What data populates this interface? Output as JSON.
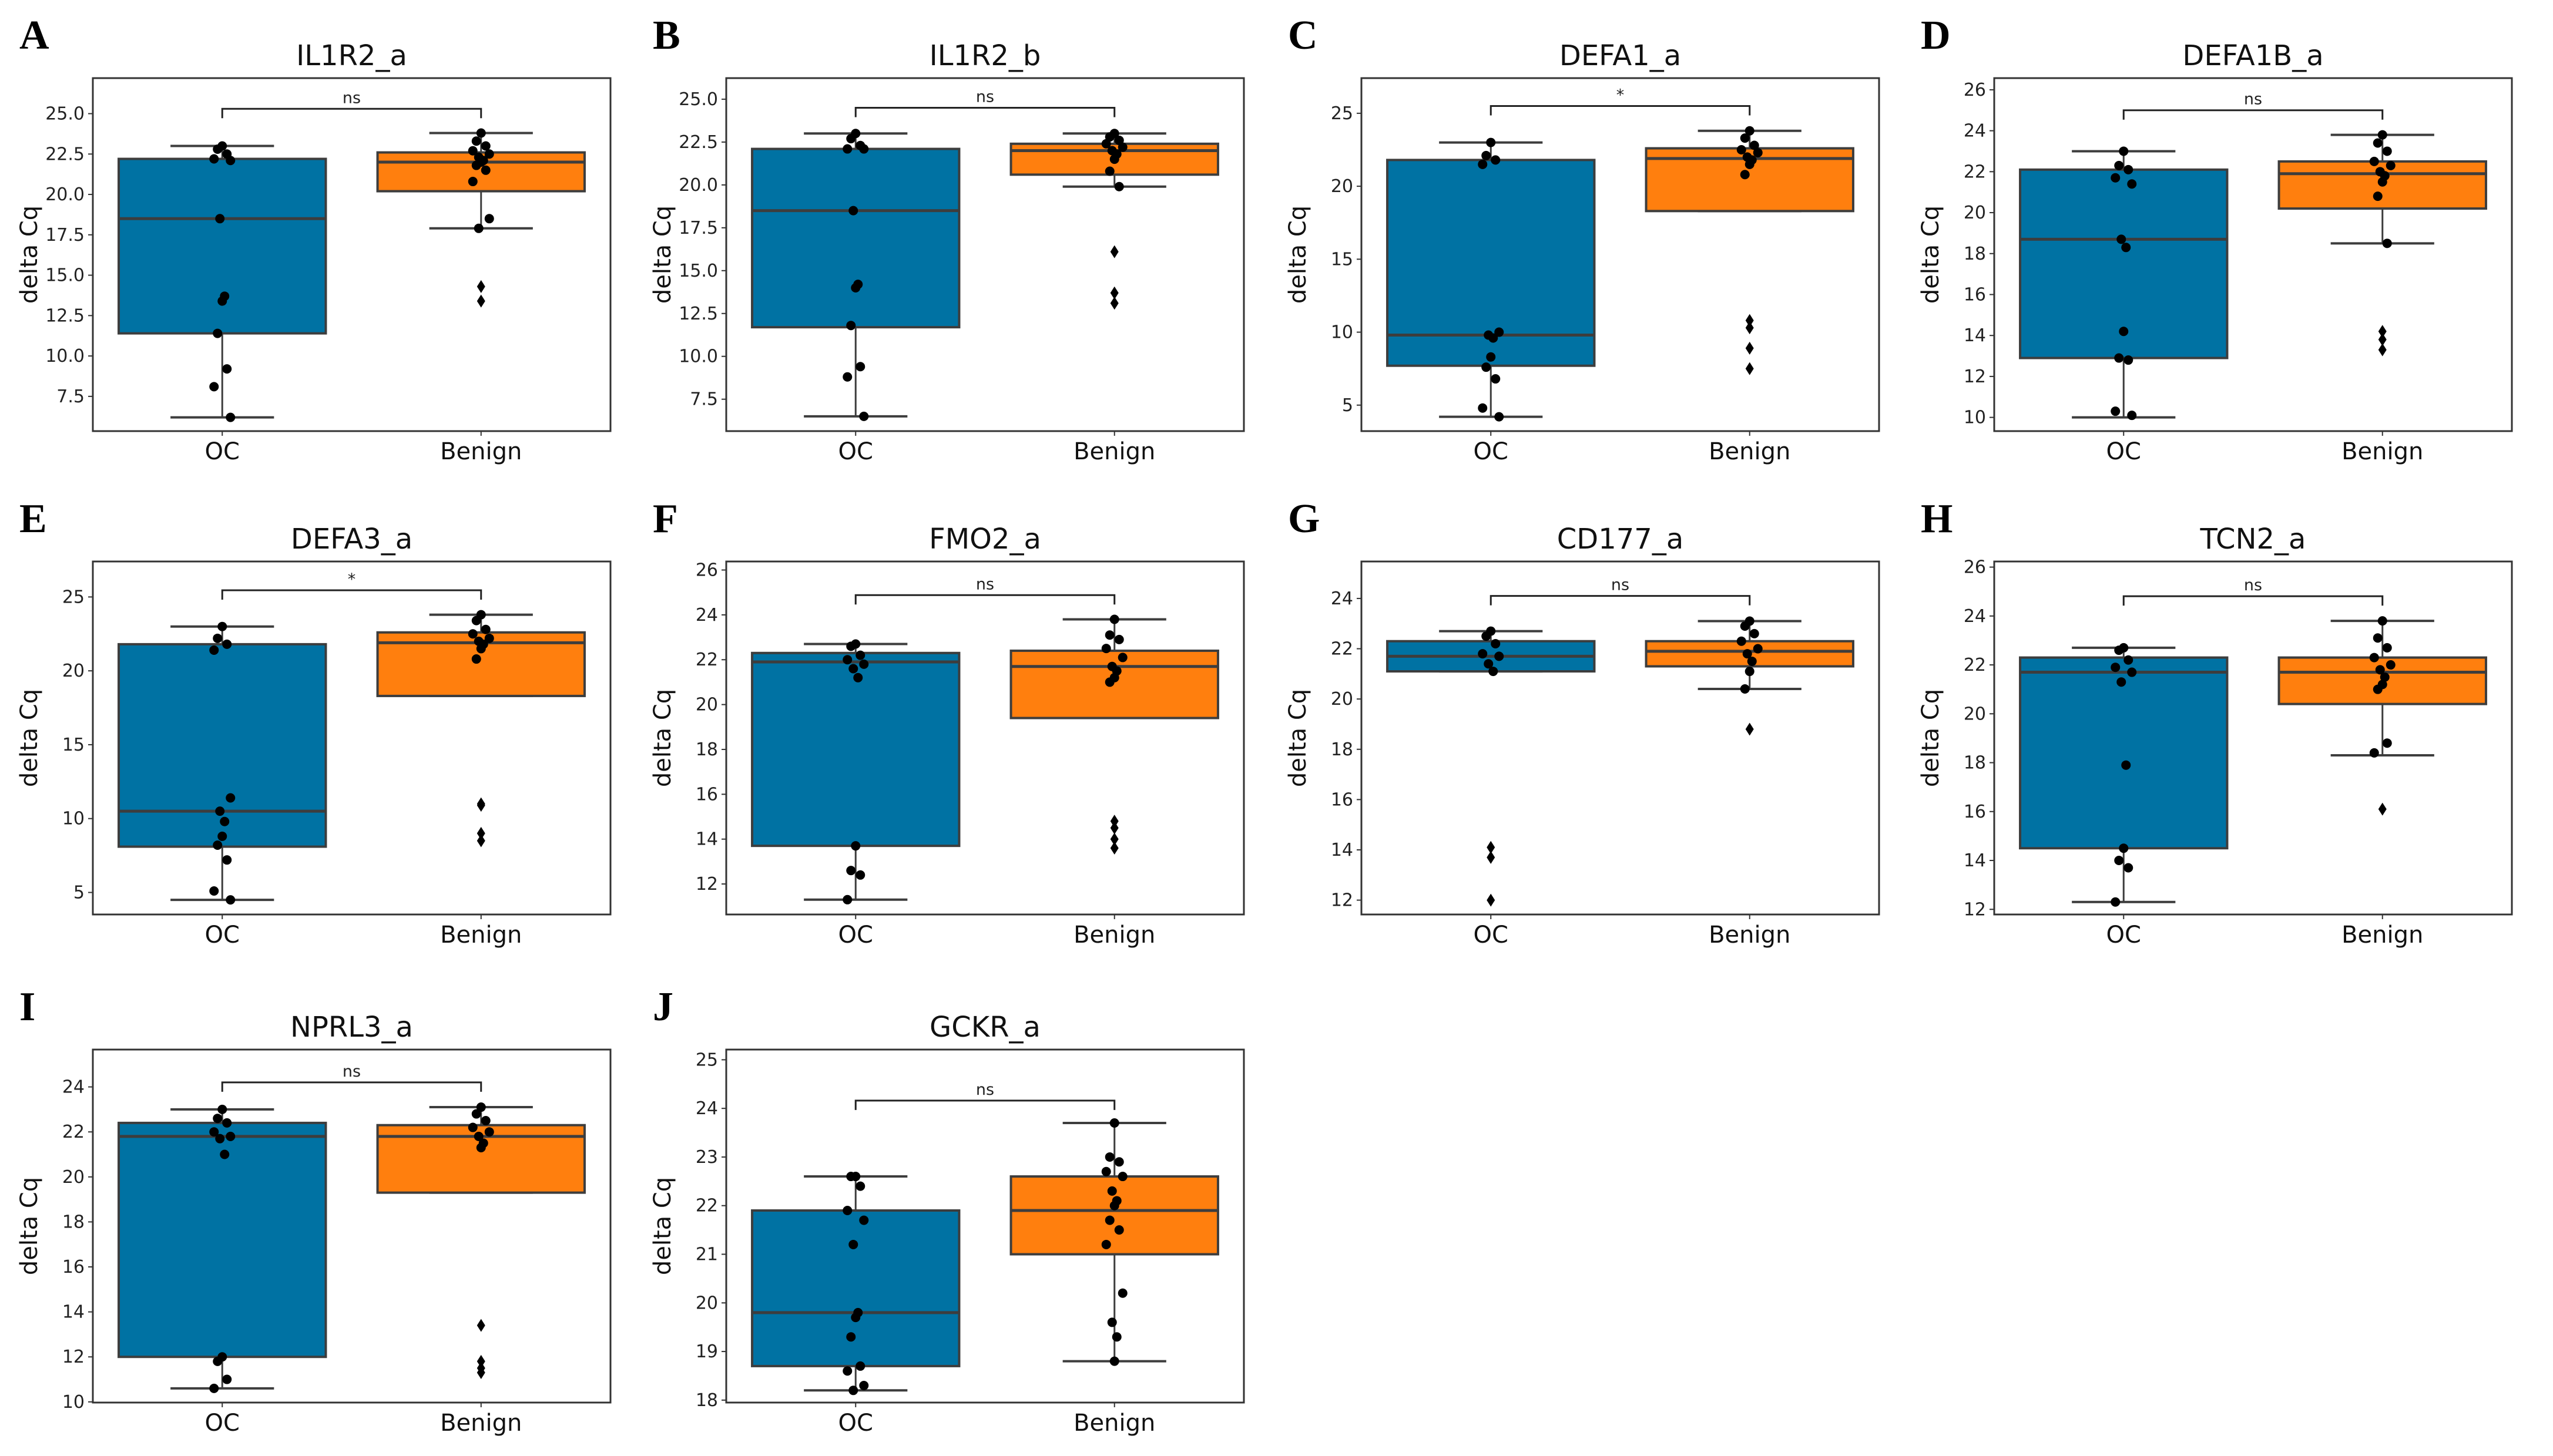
{
  "chart_data": {
    "type": "box",
    "colors": {
      "OC": "#0072a3",
      "Benign": "#ff7f0e",
      "edge": "#3d3d3d",
      "points": "#000000"
    },
    "categories": [
      "OC",
      "Benign"
    ],
    "ylabel": "delta Cq",
    "panels": [
      {
        "letter": "A",
        "title": "IL1R2_a",
        "ylim": [
          5.35,
          27.2
        ],
        "ticks": [
          7.5,
          10,
          12.5,
          15,
          17.5,
          20,
          22.5,
          25
        ],
        "tick_labels": [
          "7.5",
          "10.0",
          "12.5",
          "15.0",
          "17.5",
          "20.0",
          "22.5",
          "25.0"
        ],
        "significance": "ns",
        "bracket_y": 25.3,
        "groups": [
          {
            "name": "OC",
            "whisker_low": 6.2,
            "q1": 11.4,
            "median": 18.5,
            "q3": 22.2,
            "whisker_high": 23.0,
            "points": [
              23.0,
              22.8,
              22.5,
              22.2,
              22.1,
              18.5,
              13.7,
              13.4,
              11.4,
              9.2,
              8.1,
              6.2
            ],
            "fliers": []
          },
          {
            "name": "Benign",
            "whisker_low": 17.9,
            "q1": 20.2,
            "median": 22.0,
            "q3": 22.6,
            "whisker_high": 23.8,
            "points": [
              23.8,
              23.3,
              23.0,
              22.7,
              22.5,
              22.3,
              22.1,
              22.0,
              21.8,
              21.5,
              20.8,
              18.5,
              17.9
            ],
            "fliers": [
              14.3,
              13.4
            ]
          }
        ]
      },
      {
        "letter": "B",
        "title": "IL1R2_b",
        "ylim": [
          5.64,
          26.23
        ],
        "ticks": [
          7.5,
          10,
          12.5,
          15,
          17.5,
          20,
          22.5,
          25
        ],
        "tick_labels": [
          "7.5",
          "10.0",
          "12.5",
          "15.0",
          "17.5",
          "20.0",
          "22.5",
          "25.0"
        ],
        "significance": "ns",
        "bracket_y": 24.5,
        "groups": [
          {
            "name": "OC",
            "whisker_low": 6.5,
            "q1": 11.7,
            "median": 18.5,
            "q3": 22.1,
            "whisker_high": 23.0,
            "points": [
              23.0,
              22.7,
              22.3,
              22.1,
              22.1,
              18.5,
              14.2,
              14.0,
              11.8,
              9.4,
              8.8,
              6.5
            ],
            "fliers": []
          },
          {
            "name": "Benign",
            "whisker_low": 19.9,
            "q1": 20.6,
            "median": 22.0,
            "q3": 22.4,
            "whisker_high": 23.0,
            "points": [
              23.0,
              22.8,
              22.6,
              22.4,
              22.2,
              22.0,
              21.8,
              21.5,
              20.8,
              19.9
            ],
            "fliers": [
              16.1,
              13.7,
              13.1
            ]
          }
        ]
      },
      {
        "letter": "C",
        "title": "DEFA1_a",
        "ylim": [
          3.22,
          27.41
        ],
        "ticks": [
          5,
          10,
          15,
          20,
          25
        ],
        "tick_labels": [
          "5",
          "10",
          "15",
          "20",
          "25"
        ],
        "significance": "*",
        "bracket_y": 25.5,
        "groups": [
          {
            "name": "OC",
            "whisker_low": 4.2,
            "q1": 7.7,
            "median": 9.8,
            "q3": 21.8,
            "whisker_high": 23.0,
            "points": [
              23.0,
              22.1,
              21.8,
              21.5,
              10.0,
              9.8,
              9.6,
              8.3,
              7.6,
              6.8,
              4.8,
              4.2
            ],
            "fliers": []
          },
          {
            "name": "Benign",
            "whisker_low": 18.3,
            "q1": 18.3,
            "median": 21.9,
            "q3": 22.6,
            "whisker_high": 23.8,
            "points": [
              23.8,
              23.3,
              22.8,
              22.5,
              22.3,
              22.0,
              21.8,
              21.5,
              20.8
            ],
            "fliers": [
              10.8,
              10.3,
              8.9,
              7.5
            ]
          }
        ]
      },
      {
        "letter": "D",
        "title": "DEFA1B_a",
        "ylim": [
          9.33,
          26.57
        ],
        "ticks": [
          10,
          12,
          14,
          16,
          18,
          20,
          22,
          24,
          26
        ],
        "tick_labels": [
          "10",
          "12",
          "14",
          "16",
          "18",
          "20",
          "22",
          "24",
          "26"
        ],
        "significance": "ns",
        "bracket_y": 25.0,
        "groups": [
          {
            "name": "OC",
            "whisker_low": 10.0,
            "q1": 12.9,
            "median": 18.7,
            "q3": 22.1,
            "whisker_high": 23.0,
            "points": [
              23.0,
              22.3,
              22.1,
              21.7,
              21.4,
              18.7,
              18.3,
              14.2,
              12.9,
              12.8,
              10.3,
              10.1
            ],
            "fliers": []
          },
          {
            "name": "Benign",
            "whisker_low": 18.5,
            "q1": 20.2,
            "median": 21.9,
            "q3": 22.5,
            "whisker_high": 23.8,
            "points": [
              23.8,
              23.4,
              23.0,
              22.5,
              22.3,
              22.0,
              21.8,
              21.5,
              20.8,
              18.5
            ],
            "fliers": [
              14.2,
              13.8,
              13.3
            ]
          }
        ]
      },
      {
        "letter": "E",
        "title": "DEFA3_a",
        "ylim": [
          3.51,
          27.4
        ],
        "ticks": [
          5,
          10,
          15,
          20,
          25
        ],
        "tick_labels": [
          "5",
          "10",
          "15",
          "20",
          "25"
        ],
        "significance": "*",
        "bracket_y": 25.45,
        "groups": [
          {
            "name": "OC",
            "whisker_low": 4.5,
            "q1": 8.1,
            "median": 10.5,
            "q3": 21.8,
            "whisker_high": 23.0,
            "points": [
              23.0,
              22.2,
              21.8,
              21.4,
              11.4,
              10.5,
              9.8,
              8.8,
              8.2,
              7.2,
              5.1,
              4.5
            ],
            "fliers": []
          },
          {
            "name": "Benign",
            "whisker_low": 18.3,
            "q1": 18.3,
            "median": 21.9,
            "q3": 22.6,
            "whisker_high": 23.8,
            "points": [
              23.8,
              23.4,
              22.8,
              22.5,
              22.2,
              22.0,
              21.8,
              21.5,
              20.8
            ],
            "fliers": [
              11.0,
              10.9,
              9.0,
              8.5
            ]
          }
        ]
      },
      {
        "letter": "F",
        "title": "FMO2_a",
        "ylim": [
          10.64,
          26.38
        ],
        "ticks": [
          12,
          14,
          16,
          18,
          20,
          22,
          24,
          26
        ],
        "tick_labels": [
          "12",
          "14",
          "16",
          "18",
          "20",
          "22",
          "24",
          "26"
        ],
        "significance": "ns",
        "bracket_y": 24.88,
        "groups": [
          {
            "name": "OC",
            "whisker_low": 11.3,
            "q1": 13.7,
            "median": 21.9,
            "q3": 22.3,
            "whisker_high": 22.7,
            "points": [
              22.7,
              22.6,
              22.2,
              22.0,
              21.8,
              21.6,
              21.2,
              13.7,
              12.6,
              12.4,
              11.3
            ],
            "fliers": []
          },
          {
            "name": "Benign",
            "whisker_low": 19.4,
            "q1": 19.4,
            "median": 21.7,
            "q3": 22.4,
            "whisker_high": 23.8,
            "points": [
              23.8,
              23.1,
              22.9,
              22.5,
              22.1,
              21.7,
              21.5,
              21.2,
              21.0
            ],
            "fliers": [
              14.8,
              14.5,
              14.0,
              13.6
            ]
          }
        ]
      },
      {
        "letter": "G",
        "title": "CD177_a",
        "ylim": [
          11.43,
          25.47
        ],
        "ticks": [
          12,
          14,
          16,
          18,
          20,
          22,
          24
        ],
        "tick_labels": [
          "12",
          "14",
          "16",
          "18",
          "20",
          "22",
          "24"
        ],
        "significance": "ns",
        "bracket_y": 24.1,
        "groups": [
          {
            "name": "OC",
            "whisker_low": 21.1,
            "q1": 21.1,
            "median": 21.7,
            "q3": 22.3,
            "whisker_high": 22.7,
            "points": [
              22.7,
              22.5,
              22.2,
              21.8,
              21.7,
              21.4,
              21.1
            ],
            "fliers": [
              14.1,
              13.7,
              12.0
            ]
          },
          {
            "name": "Benign",
            "whisker_low": 20.4,
            "q1": 21.3,
            "median": 21.9,
            "q3": 22.3,
            "whisker_high": 23.1,
            "points": [
              23.1,
              22.9,
              22.6,
              22.3,
              22.0,
              21.8,
              21.5,
              21.1,
              20.4
            ],
            "fliers": [
              18.8
            ]
          }
        ]
      },
      {
        "letter": "H",
        "title": "TCN2_a",
        "ylim": [
          11.79,
          26.23
        ],
        "ticks": [
          12,
          14,
          16,
          18,
          20,
          22,
          24,
          26
        ],
        "tick_labels": [
          "12",
          "14",
          "16",
          "18",
          "20",
          "22",
          "24",
          "26"
        ],
        "significance": "ns",
        "bracket_y": 24.81,
        "groups": [
          {
            "name": "OC",
            "whisker_low": 12.3,
            "q1": 14.5,
            "median": 21.7,
            "q3": 22.3,
            "whisker_high": 22.7,
            "points": [
              22.7,
              22.6,
              22.2,
              21.9,
              21.7,
              21.3,
              17.9,
              14.5,
              14.0,
              13.7,
              12.3
            ],
            "fliers": []
          },
          {
            "name": "Benign",
            "whisker_low": 18.3,
            "q1": 20.4,
            "median": 21.7,
            "q3": 22.3,
            "whisker_high": 23.8,
            "points": [
              23.8,
              23.1,
              22.7,
              22.3,
              22.0,
              21.8,
              21.5,
              21.2,
              21.0,
              18.8,
              18.4
            ],
            "fliers": [
              16.1
            ]
          }
        ]
      },
      {
        "letter": "I",
        "title": "NPRL3_a",
        "ylim": [
          9.97,
          25.66
        ],
        "ticks": [
          10,
          12,
          14,
          16,
          18,
          20,
          22,
          24
        ],
        "tick_labels": [
          "10",
          "12",
          "14",
          "16",
          "18",
          "20",
          "22",
          "24"
        ],
        "significance": "ns",
        "bracket_y": 24.2,
        "groups": [
          {
            "name": "OC",
            "whisker_low": 10.6,
            "q1": 12.0,
            "median": 21.8,
            "q3": 22.4,
            "whisker_high": 23.0,
            "points": [
              23.0,
              22.6,
              22.4,
              22.0,
              21.8,
              21.7,
              21.0,
              12.0,
              11.8,
              11.0,
              10.6
            ],
            "fliers": []
          },
          {
            "name": "Benign",
            "whisker_low": 19.3,
            "q1": 19.3,
            "median": 21.8,
            "q3": 22.3,
            "whisker_high": 23.1,
            "points": [
              23.1,
              22.8,
              22.5,
              22.2,
              22.0,
              21.8,
              21.5,
              21.3
            ],
            "fliers": [
              13.4,
              11.8,
              11.5,
              11.3
            ]
          }
        ]
      },
      {
        "letter": "J",
        "title": "GCKR_a",
        "ylim": [
          17.95,
          25.21
        ],
        "ticks": [
          18,
          19,
          20,
          21,
          22,
          23,
          24,
          25
        ],
        "tick_labels": [
          "18",
          "19",
          "20",
          "21",
          "22",
          "23",
          "24",
          "25"
        ],
        "significance": "ns",
        "bracket_y": 24.16,
        "groups": [
          {
            "name": "OC",
            "whisker_low": 18.2,
            "q1": 18.7,
            "median": 19.8,
            "q3": 21.9,
            "whisker_high": 22.6,
            "points": [
              22.6,
              22.6,
              22.4,
              21.9,
              21.7,
              21.2,
              19.8,
              19.7,
              19.3,
              18.7,
              18.6,
              18.3,
              18.2
            ],
            "fliers": []
          },
          {
            "name": "Benign",
            "whisker_low": 18.8,
            "q1": 21.0,
            "median": 21.9,
            "q3": 22.6,
            "whisker_high": 23.7,
            "points": [
              23.7,
              23.0,
              22.9,
              22.7,
              22.6,
              22.3,
              22.1,
              22.0,
              21.7,
              21.5,
              21.2,
              20.2,
              19.6,
              19.3,
              18.8
            ],
            "fliers": []
          }
        ]
      }
    ]
  }
}
